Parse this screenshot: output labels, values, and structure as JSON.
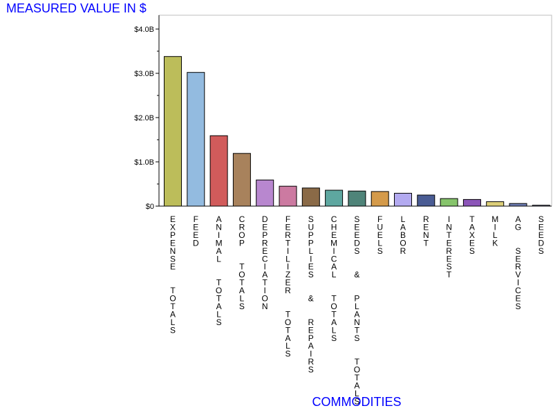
{
  "chart_data": {
    "type": "bar",
    "title": "",
    "ylabel": "MEASURED VALUE IN $",
    "xlabel": "COMMODITIES",
    "label_color": "#0000ff",
    "ylim": [
      0,
      4.2
    ],
    "yticks": [
      {
        "value": 0,
        "label": "$0"
      },
      {
        "value": 1,
        "label": "$1.0B"
      },
      {
        "value": 2,
        "label": "$2.0B"
      },
      {
        "value": 3,
        "label": "$3.0B"
      },
      {
        "value": 4,
        "label": "$4.0B"
      }
    ],
    "categories": [
      "EXPENSE TOTALS",
      "FEED",
      "ANIMAL TOTALS",
      "CROP TOTALS",
      "DEPRECIATION",
      "FERTILIZER TOTALS",
      "SUPPLIES & REPAIRS",
      "CHEMICAL TOTALS",
      "SEEDS & PLANTS TOTALS",
      "FUELS",
      "LABOR",
      "RENT",
      "INTEREST",
      "TAXES",
      "MILK",
      "AG SERVICES",
      "SEEDS"
    ],
    "values": [
      3.38,
      3.02,
      1.59,
      1.19,
      0.59,
      0.45,
      0.41,
      0.36,
      0.34,
      0.33,
      0.29,
      0.25,
      0.17,
      0.15,
      0.1,
      0.06,
      0.02
    ],
    "colors": [
      "#bcbd5a",
      "#93bbe0",
      "#d15b5b",
      "#a8825c",
      "#b887cf",
      "#cc7aa1",
      "#8a6a47",
      "#5ea7a0",
      "#4f8479",
      "#d49a4a",
      "#b3aaf0",
      "#4a5c94",
      "#86c46b",
      "#8c55b8",
      "#ddcf79",
      "#6e7db3",
      "#9aa0c8"
    ]
  }
}
